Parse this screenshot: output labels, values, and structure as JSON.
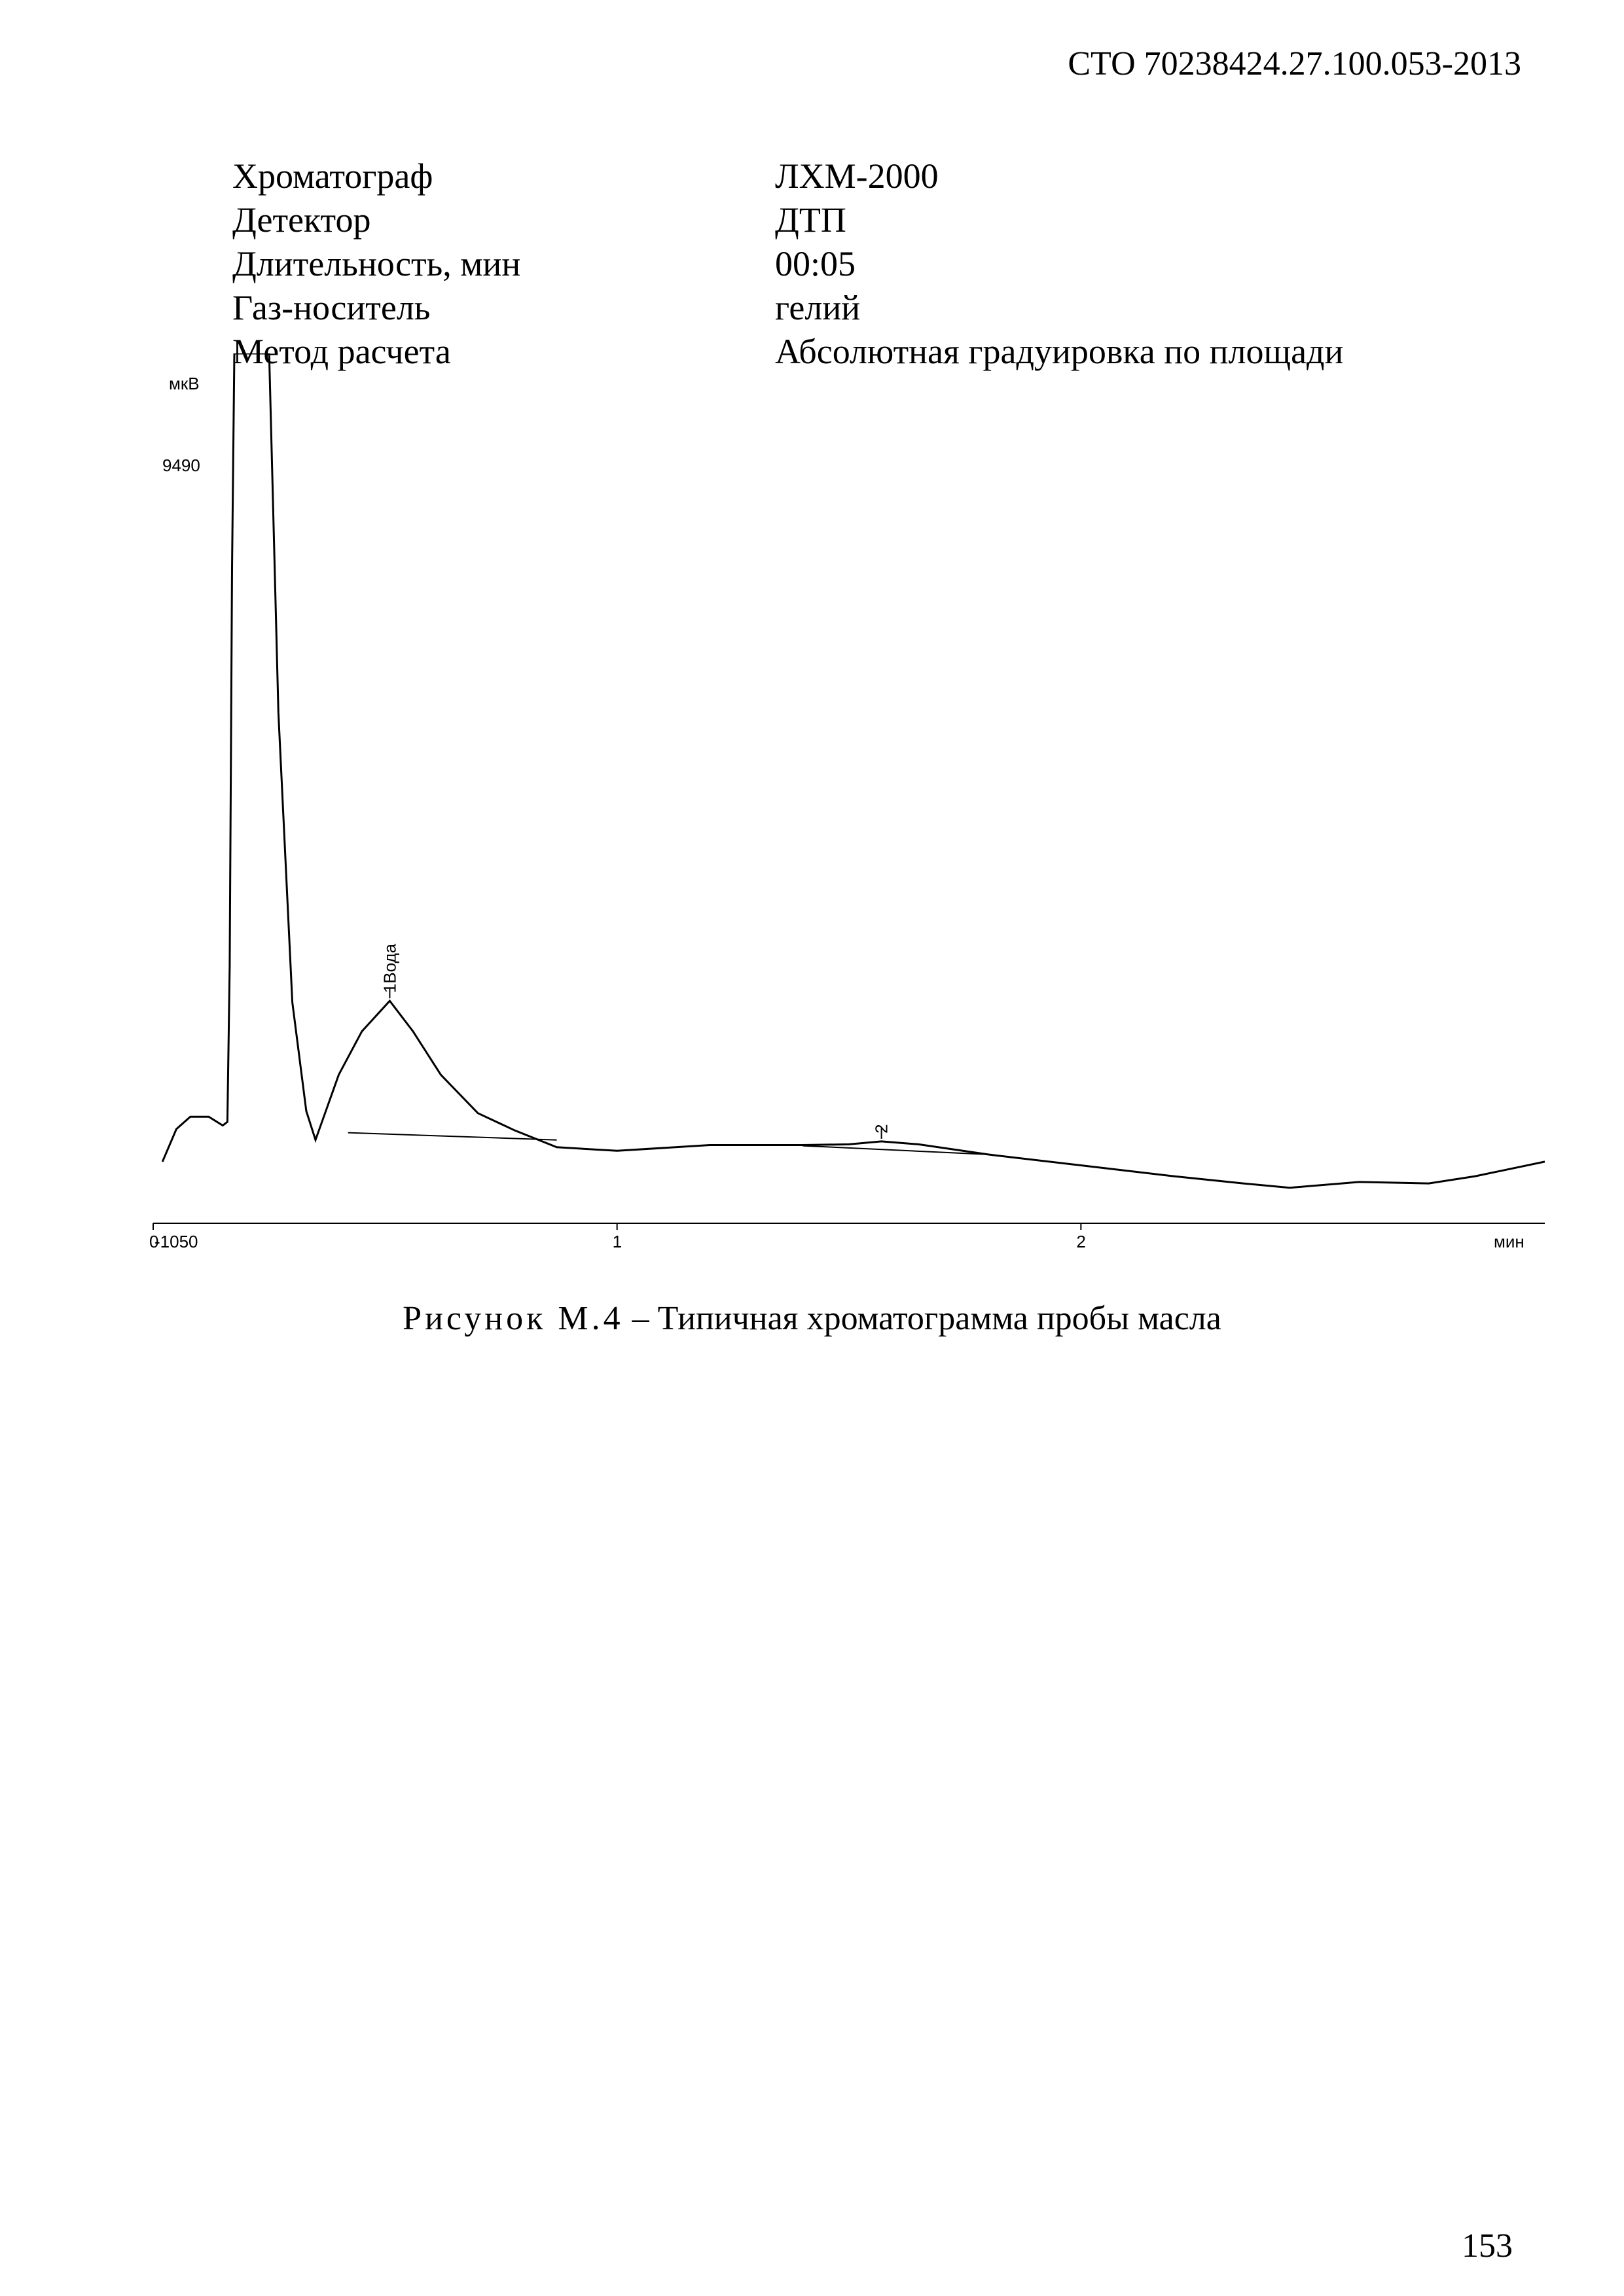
{
  "header": {
    "doc_code": "СТО 70238424.27.100.053-2013"
  },
  "info": [
    {
      "label": "Хроматограф",
      "value": "ЛХМ-2000"
    },
    {
      "label": "Детектор",
      "value": "ДТП"
    },
    {
      "label": "Длительность, мин",
      "value": "00:05"
    },
    {
      "label": "Газ-носитель",
      "value": "гелий"
    },
    {
      "label": "Метод расчета",
      "value": "Абсолютная градуировка по площади"
    }
  ],
  "chart_data": {
    "type": "line",
    "ylabel": "мкВ",
    "xlabel": "мин",
    "ylim_labels": {
      "top": "9490",
      "bottom": "-1050"
    },
    "xlim": [
      0,
      3.0
    ],
    "ylim": [
      -1050,
      11500
    ],
    "x_ticks": [
      "0",
      "1",
      "2"
    ],
    "series": [
      {
        "points": [
          [
            0.02,
            -200
          ],
          [
            0.05,
            250
          ],
          [
            0.08,
            420
          ],
          [
            0.12,
            420
          ],
          [
            0.15,
            300
          ],
          [
            0.16,
            350
          ],
          [
            0.165,
            2500
          ],
          [
            0.17,
            8000
          ],
          [
            0.175,
            13000
          ],
          [
            0.2,
            13000
          ],
          [
            0.25,
            11500
          ],
          [
            0.27,
            6000
          ],
          [
            0.3,
            2000
          ],
          [
            0.33,
            500
          ],
          [
            0.35,
            100
          ],
          [
            0.4,
            1000
          ],
          [
            0.45,
            1600
          ],
          [
            0.51,
            2020
          ],
          [
            0.56,
            1600
          ],
          [
            0.62,
            1000
          ],
          [
            0.7,
            470
          ],
          [
            0.78,
            230
          ],
          [
            0.87,
            0
          ],
          [
            1.0,
            -50
          ],
          [
            1.2,
            30
          ],
          [
            1.4,
            30
          ],
          [
            1.5,
            40
          ],
          [
            1.57,
            80
          ],
          [
            1.65,
            40
          ],
          [
            1.8,
            -100
          ],
          [
            2.0,
            -250
          ],
          [
            2.2,
            -400
          ],
          [
            2.35,
            -500
          ],
          [
            2.45,
            -560
          ],
          [
            2.6,
            -480
          ],
          [
            2.75,
            -500
          ],
          [
            2.85,
            -400
          ],
          [
            3.0,
            -200
          ]
        ]
      }
    ],
    "baselines": [
      [
        [
          0.42,
          200
        ],
        [
          0.87,
          100
        ]
      ],
      [
        [
          1.4,
          20
        ],
        [
          1.8,
          -100
        ]
      ]
    ],
    "peaks": [
      {
        "label": "1Вода",
        "x": 0.51,
        "y": 2020
      },
      {
        "label": "2",
        "x": 1.57,
        "y": 80
      }
    ]
  },
  "caption": {
    "lead": "Рисунок М.4",
    "rest": " – Типичная хроматограмма пробы масла"
  },
  "page_number": "153"
}
